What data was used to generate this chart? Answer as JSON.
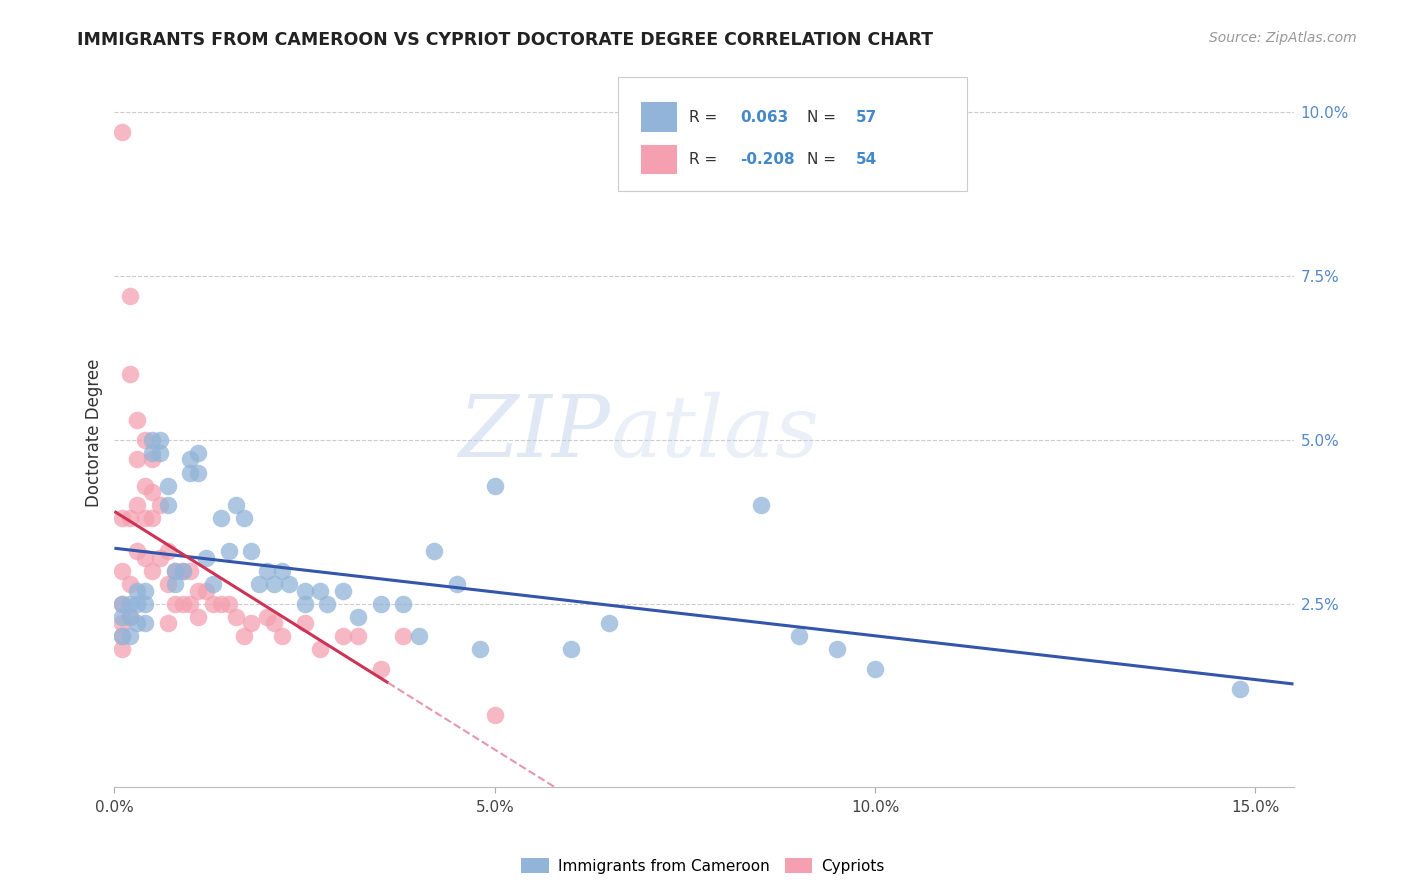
{
  "title": "IMMIGRANTS FROM CAMEROON VS CYPRIOT DOCTORATE DEGREE CORRELATION CHART",
  "source": "Source: ZipAtlas.com",
  "ylabel": "Doctorate Degree",
  "legend1_label": "Immigrants from Cameroon",
  "legend2_label": "Cypriots",
  "R1": "0.063",
  "N1": "57",
  "R2": "-0.208",
  "N2": "54",
  "blue_color": "#92B4D8",
  "pink_color": "#F4A0B0",
  "blue_line_color": "#3355AA",
  "pink_line_color": "#CC3355",
  "watermark_zip": "ZIP",
  "watermark_atlas": "atlas",
  "xlim": [
    0.0,
    0.155
  ],
  "ylim": [
    -0.003,
    0.105
  ],
  "x_ticks": [
    0.0,
    0.05,
    0.1,
    0.15
  ],
  "x_tick_labels": [
    "0.0%",
    "5.0%",
    "10.0%",
    "15.0%"
  ],
  "y_ticks": [
    0.025,
    0.05,
    0.075,
    0.1
  ],
  "y_tick_labels": [
    "2.5%",
    "5.0%",
    "7.5%",
    "10.0%"
  ],
  "blue_x": [
    0.001,
    0.001,
    0.001,
    0.002,
    0.002,
    0.002,
    0.003,
    0.003,
    0.003,
    0.004,
    0.004,
    0.004,
    0.005,
    0.005,
    0.006,
    0.006,
    0.007,
    0.007,
    0.008,
    0.008,
    0.009,
    0.01,
    0.01,
    0.011,
    0.011,
    0.012,
    0.013,
    0.014,
    0.015,
    0.016,
    0.017,
    0.018,
    0.019,
    0.02,
    0.021,
    0.022,
    0.023,
    0.025,
    0.025,
    0.027,
    0.028,
    0.03,
    0.032,
    0.035,
    0.038,
    0.04,
    0.042,
    0.045,
    0.048,
    0.05,
    0.06,
    0.065,
    0.085,
    0.09,
    0.095,
    0.1,
    0.148
  ],
  "blue_y": [
    0.025,
    0.023,
    0.02,
    0.025,
    0.023,
    0.02,
    0.027,
    0.025,
    0.022,
    0.027,
    0.025,
    0.022,
    0.05,
    0.048,
    0.05,
    0.048,
    0.043,
    0.04,
    0.03,
    0.028,
    0.03,
    0.047,
    0.045,
    0.048,
    0.045,
    0.032,
    0.028,
    0.038,
    0.033,
    0.04,
    0.038,
    0.033,
    0.028,
    0.03,
    0.028,
    0.03,
    0.028,
    0.027,
    0.025,
    0.027,
    0.025,
    0.027,
    0.023,
    0.025,
    0.025,
    0.02,
    0.033,
    0.028,
    0.018,
    0.043,
    0.018,
    0.022,
    0.04,
    0.02,
    0.018,
    0.015,
    0.012
  ],
  "pink_x": [
    0.001,
    0.001,
    0.001,
    0.001,
    0.001,
    0.001,
    0.001,
    0.002,
    0.002,
    0.002,
    0.002,
    0.002,
    0.003,
    0.003,
    0.003,
    0.003,
    0.004,
    0.004,
    0.004,
    0.004,
    0.005,
    0.005,
    0.005,
    0.005,
    0.006,
    0.006,
    0.007,
    0.007,
    0.007,
    0.008,
    0.008,
    0.009,
    0.009,
    0.01,
    0.01,
    0.011,
    0.011,
    0.012,
    0.013,
    0.014,
    0.015,
    0.016,
    0.017,
    0.018,
    0.02,
    0.021,
    0.022,
    0.025,
    0.027,
    0.03,
    0.032,
    0.035,
    0.038,
    0.05
  ],
  "pink_y": [
    0.097,
    0.038,
    0.03,
    0.025,
    0.022,
    0.02,
    0.018,
    0.072,
    0.06,
    0.038,
    0.028,
    0.023,
    0.053,
    0.047,
    0.04,
    0.033,
    0.05,
    0.043,
    0.038,
    0.032,
    0.047,
    0.042,
    0.038,
    0.03,
    0.04,
    0.032,
    0.033,
    0.028,
    0.022,
    0.03,
    0.025,
    0.03,
    0.025,
    0.03,
    0.025,
    0.027,
    0.023,
    0.027,
    0.025,
    0.025,
    0.025,
    0.023,
    0.02,
    0.022,
    0.023,
    0.022,
    0.02,
    0.022,
    0.018,
    0.02,
    0.02,
    0.015,
    0.02,
    0.008
  ]
}
